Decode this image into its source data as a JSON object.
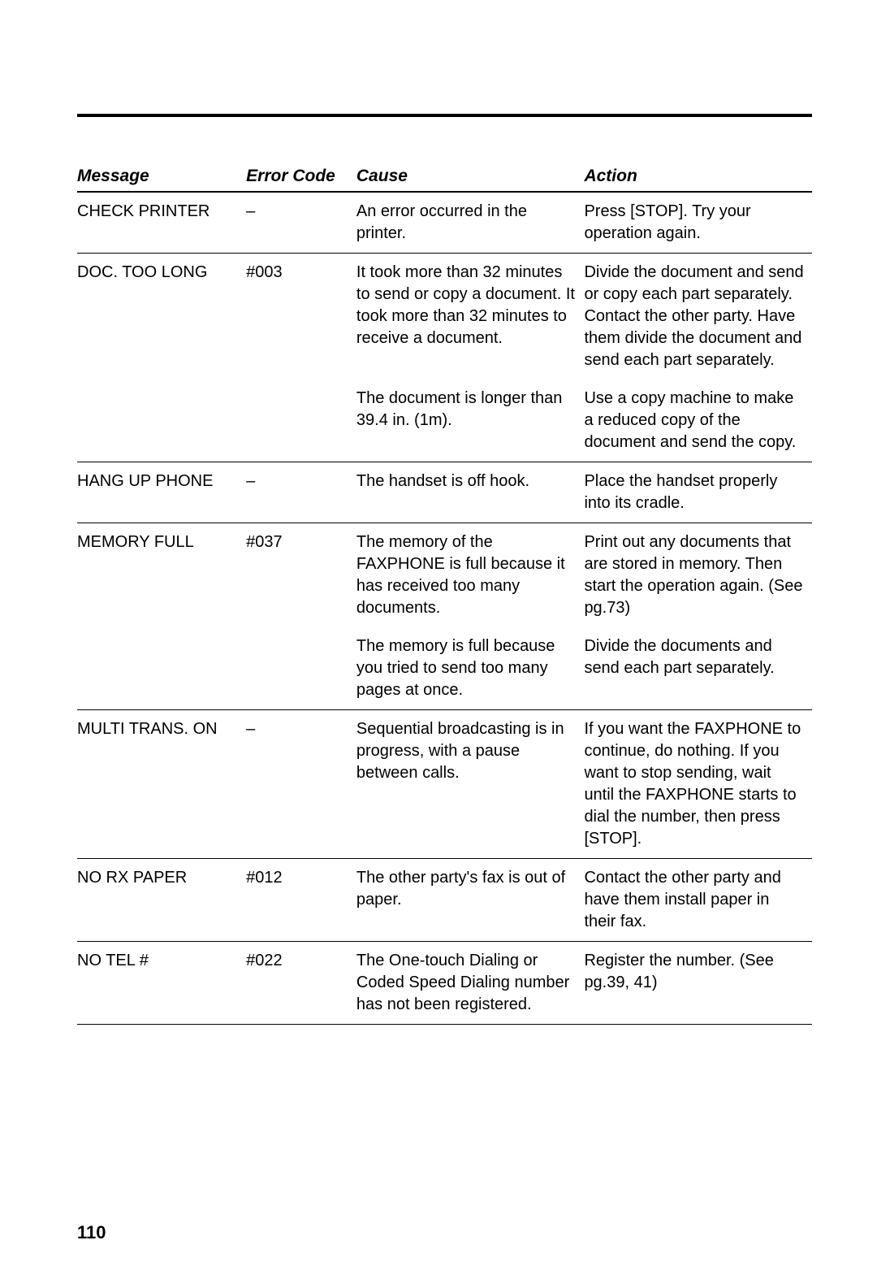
{
  "page_number": "110",
  "columns": {
    "message": "Message",
    "error_code": "Error Code",
    "cause": "Cause",
    "action": "Action"
  },
  "rows": [
    {
      "message": "CHECK PRINTER",
      "code": "–",
      "cause": "An error occurred in the printer.",
      "action": "Press [STOP]. Try your operation again.",
      "group_end": true
    },
    {
      "message": "DOC. TOO LONG",
      "code": "#003",
      "cause": "It took more than 32 minutes to send or copy a document. It took more than 32 minutes to receive a document.",
      "action": "Divide the document and send or copy each part separately. Contact the other party. Have them divide the document and send each part separately.",
      "group_end": false
    },
    {
      "message": "",
      "code": "",
      "cause": "The document is longer than 39.4 in. (1m).",
      "action": "Use a copy machine to make a reduced copy of the document and send the copy.",
      "group_end": true
    },
    {
      "message": "HANG UP PHONE",
      "code": "–",
      "cause": "The handset is off hook.",
      "action": "Place the handset properly into its cradle.",
      "group_end": true
    },
    {
      "message": "MEMORY FULL",
      "code": "#037",
      "cause": "The memory of the FAXPHONE is full because it has received too many documents.",
      "action": "Print out any documents that are stored in memory. Then start the operation again. (See pg.73)",
      "group_end": false
    },
    {
      "message": "",
      "code": "",
      "cause": "The memory is full because you tried to send too many pages at once.",
      "action": "Divide the documents and send each part separately.",
      "group_end": true
    },
    {
      "message": "MULTI TRANS. ON",
      "code": "–",
      "cause": "Sequential broadcasting is in progress, with a pause between calls.",
      "action": "If you want the FAXPHONE to continue, do nothing. If you want to stop sending, wait until the FAXPHONE starts to dial the number, then press [STOP].",
      "group_end": true
    },
    {
      "message": "NO RX PAPER",
      "code": "#012",
      "cause": "The other party's fax is out of paper.",
      "action": "Contact the other party and have them install paper in their fax.",
      "group_end": true
    },
    {
      "message": "NO TEL #",
      "code": "#022",
      "cause": "The One-touch Dialing or Coded Speed Dialing number has not been registered.",
      "action": "Register the number. (See pg.39, 41)",
      "group_end": true
    }
  ]
}
